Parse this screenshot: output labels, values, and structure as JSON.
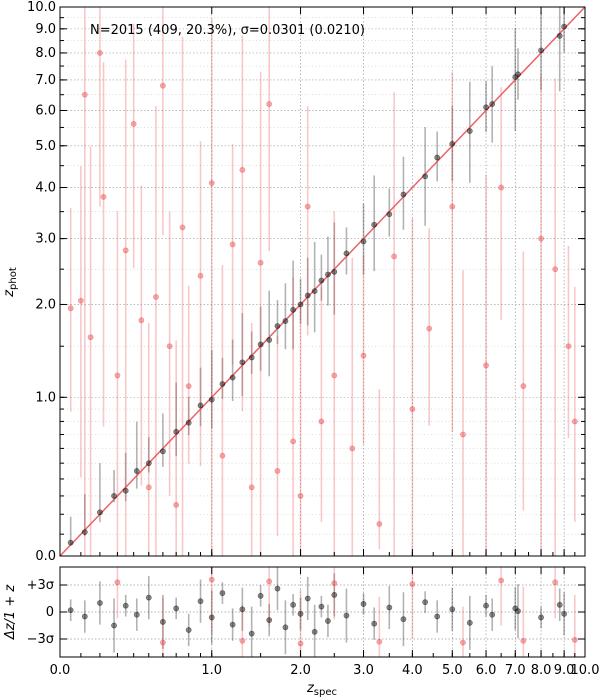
{
  "chart_data": [
    {
      "type": "scatter",
      "panel": "main",
      "annotation": "N=2015 (409, 20.3%), σ=0.0301 (0.0210)",
      "xlabel": "z_spec",
      "ylabel": "z_phot",
      "xlim": [
        0.0,
        10.0
      ],
      "ylim": [
        0.0,
        10.0
      ],
      "scale": "log(1+z)",
      "grid": true,
      "x_ticks": [
        0.0,
        1.0,
        2.0,
        3.0,
        4.0,
        5.0,
        6.0,
        7.0,
        8.0,
        9.0,
        10.0
      ],
      "y_ticks": [
        0.0,
        1.0,
        2.0,
        3.0,
        4.0,
        5.0,
        6.0,
        7.0,
        8.0,
        9.0,
        10.0
      ],
      "reference_line": {
        "type": "one-to-one",
        "color": "#e8484c"
      },
      "series": [
        {
          "role": "good",
          "color": "#000000",
          "points": [
            [
              0.05,
              0.06
            ],
            [
              0.12,
              0.11
            ],
            [
              0.2,
              0.21
            ],
            [
              0.28,
              0.3
            ],
            [
              0.35,
              0.33
            ],
            [
              0.42,
              0.45
            ],
            [
              0.5,
              0.5
            ],
            [
              0.6,
              0.58
            ],
            [
              0.7,
              0.72
            ],
            [
              0.8,
              0.79
            ],
            [
              0.9,
              0.93
            ],
            [
              1.0,
              0.98
            ],
            [
              1.1,
              1.12
            ],
            [
              1.2,
              1.18
            ],
            [
              1.3,
              1.33
            ],
            [
              1.4,
              1.38
            ],
            [
              1.5,
              1.52
            ],
            [
              1.6,
              1.57
            ],
            [
              1.7,
              1.73
            ],
            [
              1.8,
              1.79
            ],
            [
              1.9,
              1.93
            ],
            [
              2.0,
              2.0
            ],
            [
              2.1,
              2.12
            ],
            [
              2.2,
              2.18
            ],
            [
              2.3,
              2.33
            ],
            [
              2.4,
              2.42
            ],
            [
              2.5,
              2.46
            ],
            [
              2.7,
              2.75
            ],
            [
              3.0,
              2.95
            ],
            [
              3.2,
              3.25
            ],
            [
              3.5,
              3.45
            ],
            [
              3.8,
              3.85
            ],
            [
              4.3,
              4.25
            ],
            [
              4.6,
              4.7
            ],
            [
              5.0,
              5.05
            ],
            [
              5.5,
              5.4
            ],
            [
              6.0,
              6.1
            ],
            [
              6.2,
              6.2
            ],
            [
              7.0,
              7.1
            ],
            [
              7.1,
              7.2
            ],
            [
              8.0,
              8.1
            ],
            [
              8.8,
              8.7
            ],
            [
              9.0,
              9.1
            ]
          ]
        },
        {
          "role": "outlier",
          "color": "#e8484c",
          "points": [
            [
              0.05,
              1.95
            ],
            [
              0.1,
              2.05
            ],
            [
              0.12,
              6.5
            ],
            [
              0.15,
              1.6
            ],
            [
              0.2,
              8.0
            ],
            [
              0.22,
              3.8
            ],
            [
              0.3,
              1.2
            ],
            [
              0.35,
              2.8
            ],
            [
              0.4,
              5.6
            ],
            [
              0.45,
              1.8
            ],
            [
              0.5,
              0.35
            ],
            [
              0.55,
              2.1
            ],
            [
              0.6,
              6.8
            ],
            [
              0.65,
              1.5
            ],
            [
              0.7,
              0.25
            ],
            [
              0.75,
              3.2
            ],
            [
              0.8,
              1.1
            ],
            [
              0.9,
              2.4
            ],
            [
              1.0,
              4.1
            ],
            [
              1.1,
              0.55
            ],
            [
              1.2,
              2.9
            ],
            [
              1.3,
              4.4
            ],
            [
              1.4,
              0.35
            ],
            [
              1.5,
              2.6
            ],
            [
              1.6,
              6.2
            ],
            [
              1.7,
              0.45
            ],
            [
              1.9,
              0.65
            ],
            [
              2.0,
              0.3
            ],
            [
              2.1,
              3.6
            ],
            [
              2.3,
              0.8
            ],
            [
              2.5,
              1.2
            ],
            [
              2.8,
              0.6
            ],
            [
              3.0,
              1.4
            ],
            [
              3.3,
              0.15
            ],
            [
              3.6,
              2.7
            ],
            [
              4.0,
              0.9
            ],
            [
              4.4,
              1.7
            ],
            [
              5.0,
              3.6
            ],
            [
              5.3,
              0.7
            ],
            [
              6.0,
              1.3
            ],
            [
              6.5,
              4.0
            ],
            [
              7.3,
              1.1
            ],
            [
              8.0,
              3.0
            ],
            [
              8.6,
              2.5
            ],
            [
              9.2,
              1.5
            ],
            [
              9.5,
              0.8
            ]
          ]
        }
      ]
    },
    {
      "type": "scatter",
      "panel": "residual",
      "ylabel": "Δz/1 + z",
      "y_ticks": [
        "+3σ",
        "0",
        "−3σ"
      ],
      "sigma": 0.0301,
      "ylim_sigma": [
        -5,
        5
      ],
      "grid": true,
      "series": [
        {
          "role": "good",
          "color": "#000000",
          "points": [
            [
              0.05,
              0.2
            ],
            [
              0.12,
              -0.5
            ],
            [
              0.2,
              1.0
            ],
            [
              0.28,
              -1.5
            ],
            [
              0.35,
              0.7
            ],
            [
              0.42,
              -0.3
            ],
            [
              0.5,
              1.6
            ],
            [
              0.6,
              -1.1
            ],
            [
              0.7,
              0.4
            ],
            [
              0.8,
              -2.0
            ],
            [
              0.9,
              1.2
            ],
            [
              1.0,
              -0.6
            ],
            [
              1.1,
              2.1
            ],
            [
              1.2,
              -1.4
            ],
            [
              1.3,
              0.3
            ],
            [
              1.4,
              -2.4
            ],
            [
              1.5,
              1.8
            ],
            [
              1.6,
              -0.9
            ],
            [
              1.7,
              2.6
            ],
            [
              1.8,
              -1.7
            ],
            [
              1.9,
              0.8
            ],
            [
              2.0,
              -0.2
            ],
            [
              2.1,
              1.5
            ],
            [
              2.2,
              -2.2
            ],
            [
              2.3,
              0.6
            ],
            [
              2.4,
              -1.0
            ],
            [
              2.5,
              1.9
            ],
            [
              2.7,
              -0.4
            ],
            [
              3.0,
              0.9
            ],
            [
              3.2,
              -1.3
            ],
            [
              3.5,
              0.5
            ],
            [
              3.8,
              -0.8
            ],
            [
              4.3,
              1.1
            ],
            [
              4.6,
              -0.5
            ],
            [
              5.0,
              0.3
            ],
            [
              5.5,
              -1.2
            ],
            [
              6.0,
              0.7
            ],
            [
              6.2,
              -0.3
            ],
            [
              7.0,
              0.4
            ],
            [
              7.1,
              0.1
            ],
            [
              8.0,
              -0.6
            ],
            [
              8.8,
              0.8
            ],
            [
              9.0,
              -0.2
            ]
          ]
        },
        {
          "role": "outlier",
          "color": "#e8484c",
          "points": [
            [
              0.3,
              3.3
            ],
            [
              0.6,
              -3.4
            ],
            [
              1.0,
              3.6
            ],
            [
              1.3,
              -3.2
            ],
            [
              1.6,
              3.4
            ],
            [
              2.0,
              -3.5
            ],
            [
              2.5,
              3.2
            ],
            [
              3.3,
              -3.3
            ],
            [
              4.0,
              3.1
            ],
            [
              5.3,
              -3.4
            ],
            [
              6.5,
              3.5
            ],
            [
              7.3,
              -3.2
            ],
            [
              8.6,
              3.3
            ],
            [
              9.5,
              -3.1
            ]
          ]
        }
      ]
    }
  ]
}
